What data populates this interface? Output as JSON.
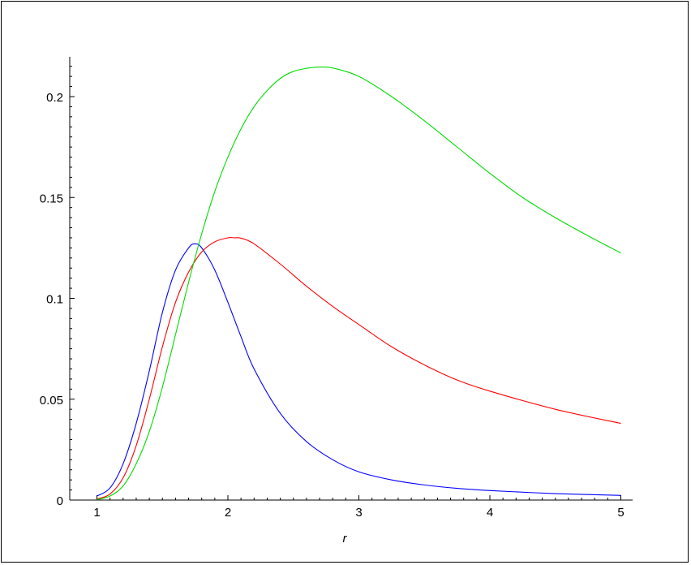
{
  "chart_data": {
    "type": "line",
    "title": "",
    "xlabel": "r",
    "ylabel": "",
    "xlim": [
      0.8,
      5.0
    ],
    "ylim": [
      0,
      0.22
    ],
    "grid": false,
    "legend": "none",
    "x_ticks": [
      {
        "value": 1,
        "label": "1"
      },
      {
        "value": 2,
        "label": "2"
      },
      {
        "value": 3,
        "label": "3"
      },
      {
        "value": 4,
        "label": "4"
      },
      {
        "value": 5,
        "label": "5"
      }
    ],
    "y_ticks": [
      {
        "value": 0,
        "label": "0"
      },
      {
        "value": 0.05,
        "label": "0.05"
      },
      {
        "value": 0.1,
        "label": "0.1"
      },
      {
        "value": 0.15,
        "label": "0.15"
      },
      {
        "value": 0.2,
        "label": "0.2"
      }
    ],
    "series": [
      {
        "color": "#0000ff",
        "x": [
          1.0,
          1.1,
          1.2,
          1.3,
          1.4,
          1.5,
          1.6,
          1.7,
          1.75,
          1.8,
          1.9,
          2.0,
          2.1,
          2.2,
          2.4,
          2.6,
          2.8,
          3.0,
          3.25,
          3.5,
          3.75,
          4.0,
          4.5,
          5.0
        ],
        "y": [
          0.002,
          0.006,
          0.018,
          0.038,
          0.064,
          0.093,
          0.114,
          0.125,
          0.127,
          0.125,
          0.114,
          0.098,
          0.081,
          0.065,
          0.043,
          0.029,
          0.02,
          0.014,
          0.01,
          0.0075,
          0.0058,
          0.0047,
          0.0032,
          0.0023
        ]
      },
      {
        "color": "#ff0000",
        "x": [
          1.0,
          1.1,
          1.2,
          1.3,
          1.4,
          1.5,
          1.6,
          1.7,
          1.8,
          1.9,
          2.0,
          2.05,
          2.1,
          2.2,
          2.4,
          2.6,
          2.8,
          3.0,
          3.25,
          3.5,
          3.75,
          4.0,
          4.5,
          5.0
        ],
        "y": [
          0.0005,
          0.003,
          0.011,
          0.027,
          0.05,
          0.076,
          0.098,
          0.113,
          0.123,
          0.128,
          0.13,
          0.13,
          0.1298,
          0.127,
          0.117,
          0.106,
          0.096,
          0.087,
          0.076,
          0.067,
          0.0595,
          0.054,
          0.045,
          0.038
        ]
      },
      {
        "color": "#00dd00",
        "x": [
          1.0,
          1.1,
          1.2,
          1.3,
          1.4,
          1.5,
          1.6,
          1.7,
          1.8,
          1.9,
          2.0,
          2.1,
          2.2,
          2.3,
          2.4,
          2.5,
          2.6,
          2.7,
          2.8,
          3.0,
          3.25,
          3.5,
          3.75,
          4.0,
          4.25,
          4.5,
          4.75,
          5.0
        ],
        "y": [
          0.0002,
          0.002,
          0.007,
          0.018,
          0.034,
          0.056,
          0.082,
          0.108,
          0.132,
          0.153,
          0.17,
          0.184,
          0.195,
          0.203,
          0.209,
          0.2125,
          0.214,
          0.2146,
          0.2142,
          0.21,
          0.2,
          0.188,
          0.175,
          0.162,
          0.15,
          0.14,
          0.131,
          0.1225
        ]
      }
    ]
  }
}
